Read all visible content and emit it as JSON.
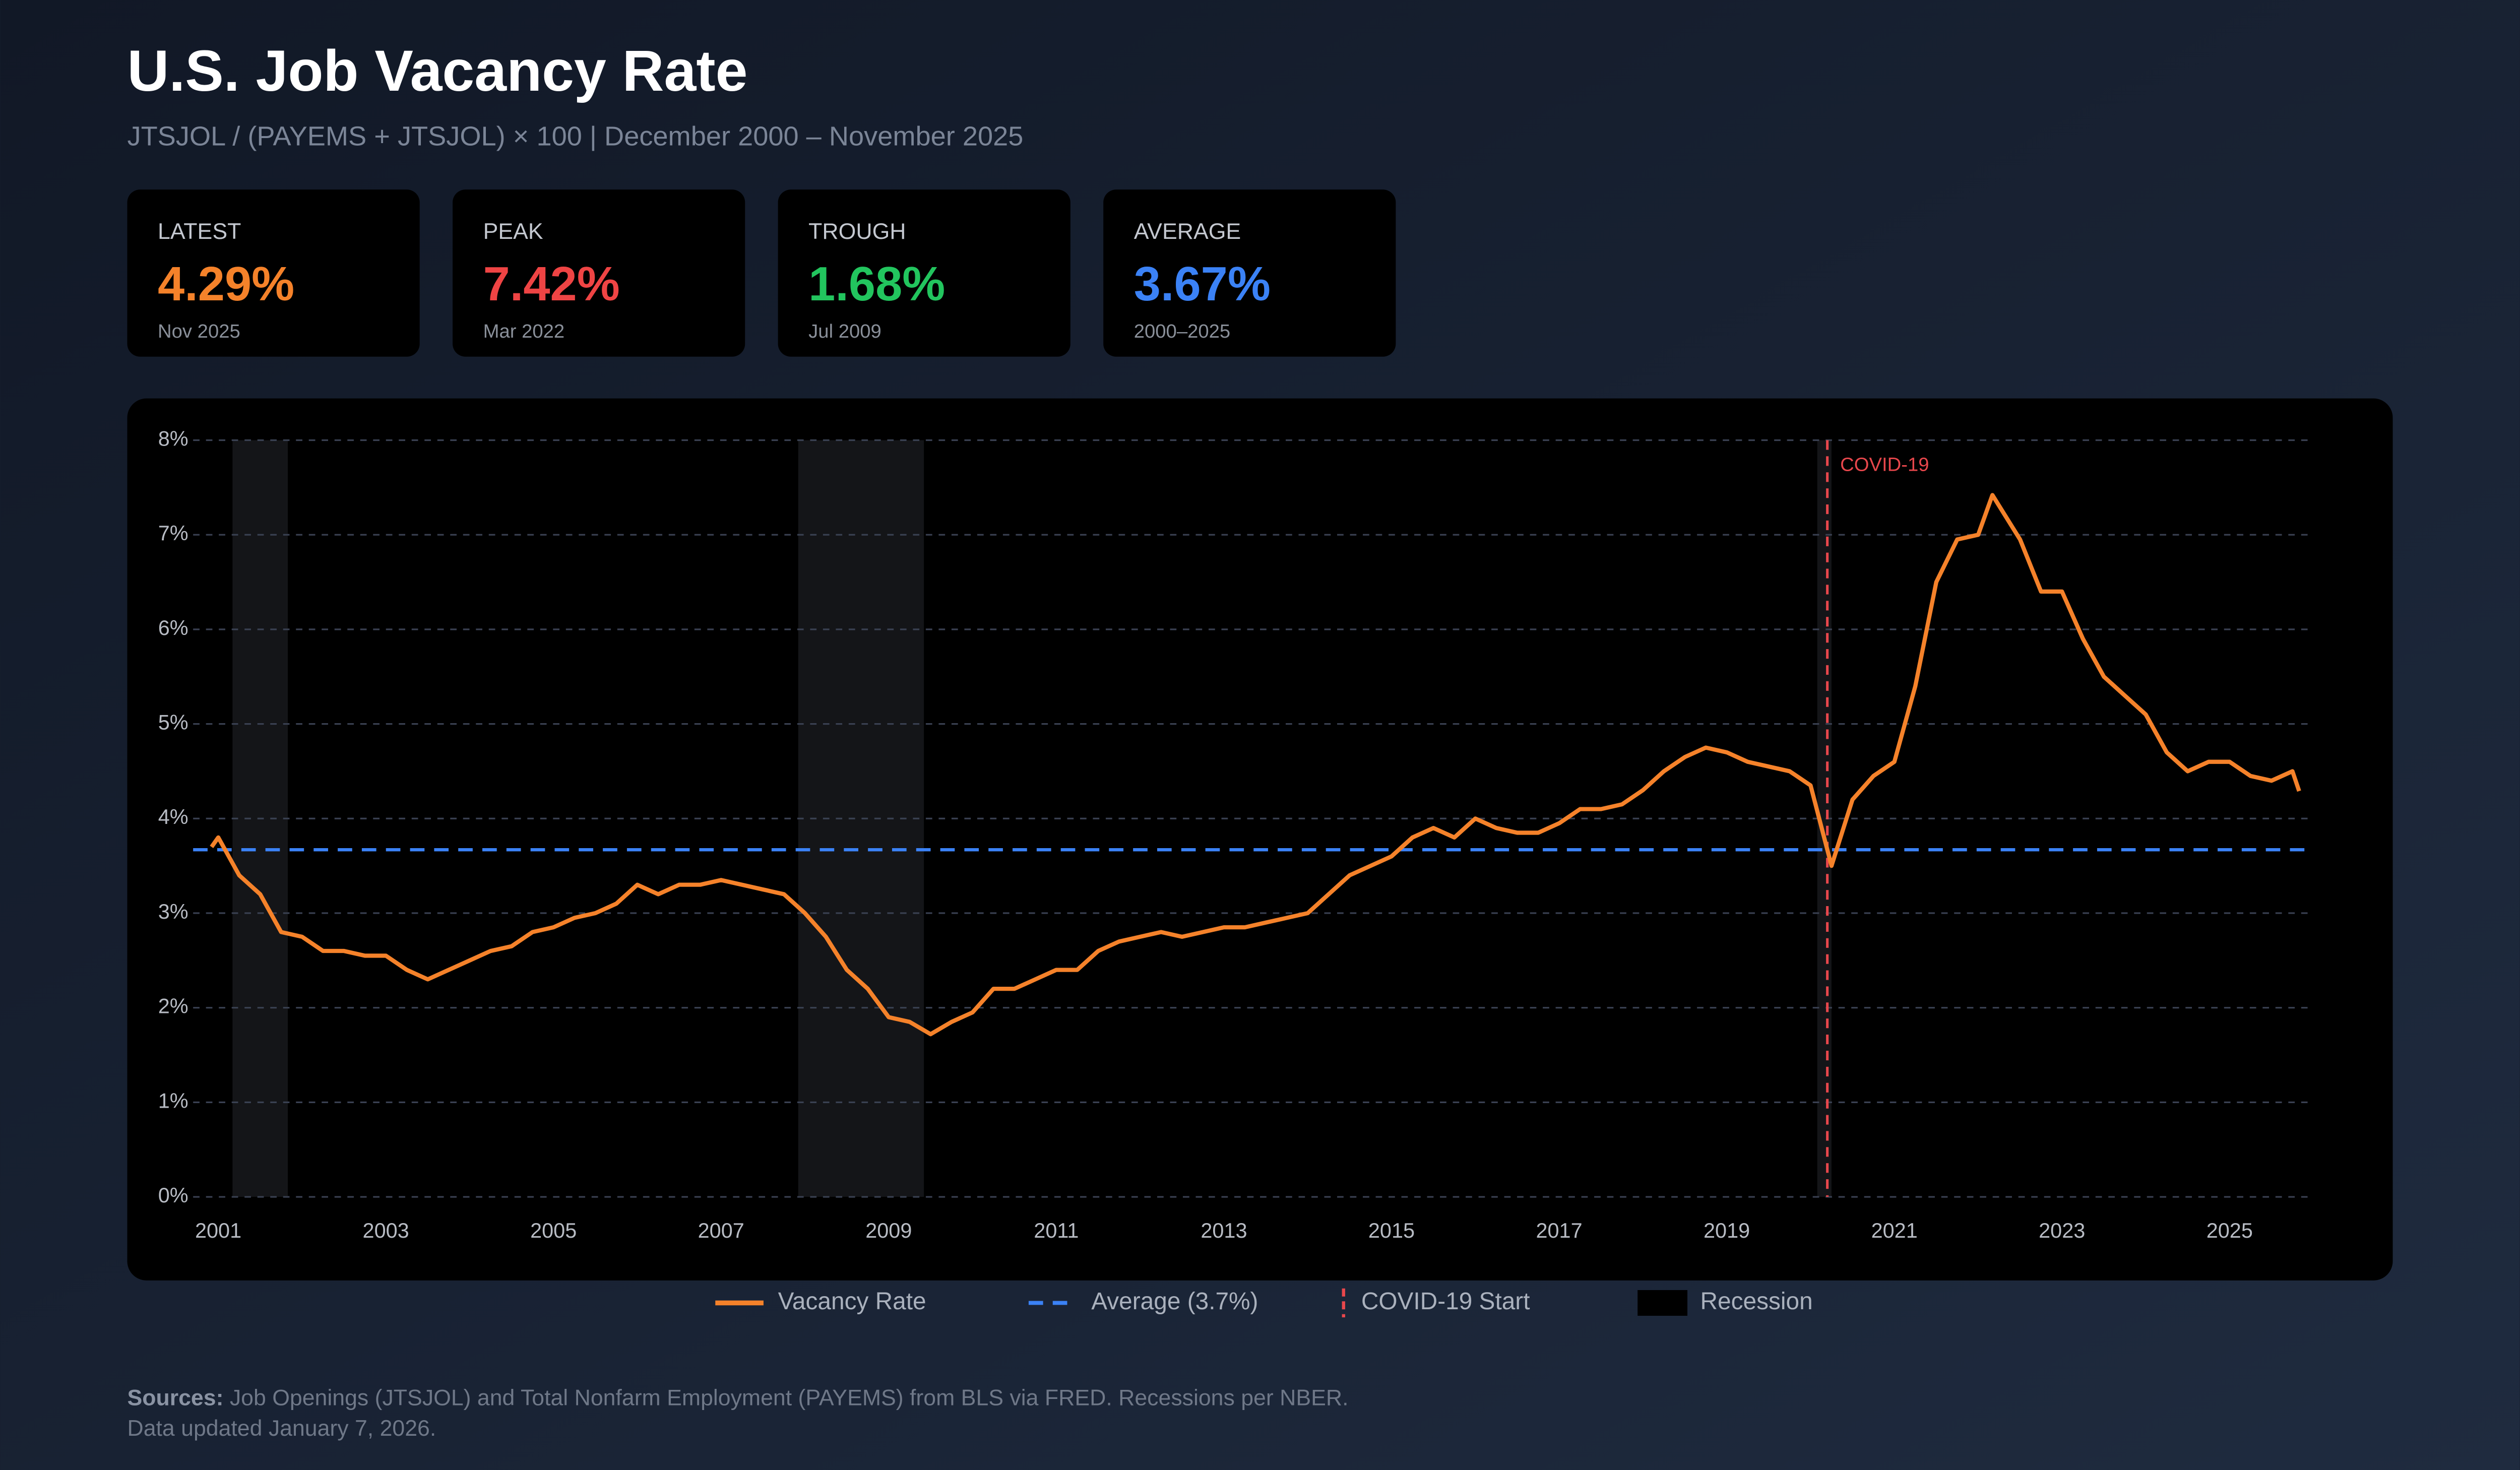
{
  "header": {
    "title": "U.S. Job Vacancy Rate",
    "subtitle": "JTSJOL / (PAYEMS + JTSJOL) × 100 | December 2000 – November 2025"
  },
  "stats": [
    {
      "label": "LATEST",
      "value": "4.29%",
      "note": "Nov 2025",
      "color": "#f5822a"
    },
    {
      "label": "PEAK",
      "value": "7.42%",
      "note": "Mar 2022",
      "color": "#ef4444"
    },
    {
      "label": "TROUGH",
      "value": "1.68%",
      "note": "Jul 2009",
      "color": "#22c55e"
    },
    {
      "label": "AVERAGE",
      "value": "3.67%",
      "note": "2000–2025",
      "color": "#3b82f6"
    }
  ],
  "chart_data": {
    "type": "line",
    "x": [
      2000.92,
      2001.0,
      2001.25,
      2001.5,
      2001.75,
      2002.0,
      2002.25,
      2002.5,
      2002.75,
      2003.0,
      2003.25,
      2003.5,
      2003.75,
      2004.0,
      2004.25,
      2004.5,
      2004.75,
      2005.0,
      2005.25,
      2005.5,
      2005.75,
      2006.0,
      2006.25,
      2006.5,
      2006.75,
      2007.0,
      2007.25,
      2007.5,
      2007.75,
      2008.0,
      2008.25,
      2008.5,
      2008.75,
      2009.0,
      2009.25,
      2009.5,
      2009.75,
      2010.0,
      2010.25,
      2010.5,
      2010.75,
      2011.0,
      2011.25,
      2011.5,
      2011.75,
      2012.0,
      2012.25,
      2012.5,
      2012.75,
      2013.0,
      2013.25,
      2013.5,
      2013.75,
      2014.0,
      2014.25,
      2014.5,
      2014.75,
      2015.0,
      2015.25,
      2015.5,
      2015.75,
      2016.0,
      2016.25,
      2016.5,
      2016.75,
      2017.0,
      2017.25,
      2017.5,
      2017.75,
      2018.0,
      2018.25,
      2018.5,
      2018.75,
      2019.0,
      2019.25,
      2019.5,
      2019.75,
      2020.0,
      2020.25,
      2020.5,
      2020.75,
      2021.0,
      2021.25,
      2021.5,
      2021.75,
      2022.0,
      2022.17,
      2022.5,
      2022.75,
      2023.0,
      2023.25,
      2023.5,
      2023.75,
      2024.0,
      2024.25,
      2024.5,
      2024.75,
      2025.0,
      2025.25,
      2025.5,
      2025.75,
      2025.83
    ],
    "series": [
      {
        "name": "Vacancy Rate",
        "color": "#f5822a",
        "values": [
          3.7,
          3.8,
          3.4,
          3.2,
          2.8,
          2.75,
          2.6,
          2.6,
          2.55,
          2.55,
          2.4,
          2.3,
          2.4,
          2.5,
          2.6,
          2.65,
          2.8,
          2.85,
          2.95,
          3.0,
          3.1,
          3.3,
          3.2,
          3.3,
          3.3,
          3.35,
          3.3,
          3.25,
          3.2,
          3.0,
          2.75,
          2.4,
          2.2,
          1.9,
          1.85,
          1.72,
          1.85,
          1.95,
          2.2,
          2.2,
          2.3,
          2.4,
          2.4,
          2.6,
          2.7,
          2.75,
          2.8,
          2.75,
          2.8,
          2.85,
          2.85,
          2.9,
          2.95,
          3.0,
          3.2,
          3.4,
          3.5,
          3.6,
          3.8,
          3.9,
          3.8,
          4.0,
          3.9,
          3.85,
          3.85,
          3.95,
          4.1,
          4.1,
          4.15,
          4.3,
          4.5,
          4.65,
          4.75,
          4.7,
          4.6,
          4.55,
          4.5,
          4.35,
          3.5,
          4.2,
          4.45,
          4.6,
          5.4,
          6.5,
          6.95,
          7.0,
          7.42,
          6.95,
          6.4,
          6.4,
          5.9,
          5.5,
          5.3,
          5.1,
          4.7,
          4.5,
          4.6,
          4.6,
          4.45,
          4.4,
          4.5,
          4.29
        ]
      }
    ],
    "average": {
      "name": "Average (3.7%)",
      "value": 3.67,
      "color": "#3b82f6"
    },
    "covid": {
      "name": "COVID-19 Start",
      "label": "COVID-19",
      "x": 2020.2,
      "color": "#e8474c"
    },
    "recession": {
      "name": "Recession",
      "ranges": [
        [
          2001.17,
          2001.83
        ],
        [
          2007.92,
          2009.42
        ],
        [
          2020.08,
          2020.25
        ]
      ]
    },
    "xlim": [
      2000.7,
      2025.95
    ],
    "xticks": [
      2001,
      2003,
      2005,
      2007,
      2009,
      2011,
      2013,
      2015,
      2017,
      2019,
      2021,
      2023,
      2025
    ],
    "ylim": [
      0,
      8
    ],
    "yticks": [
      {
        "value": 0,
        "label": "0%"
      },
      {
        "value": 1,
        "label": "1%"
      },
      {
        "value": 2,
        "label": "2%"
      },
      {
        "value": 3,
        "label": "3%"
      },
      {
        "value": 4,
        "label": "4%"
      },
      {
        "value": 5,
        "label": "5%"
      },
      {
        "value": 6,
        "label": "6%"
      },
      {
        "value": 7,
        "label": "7%"
      },
      {
        "value": 8,
        "label": "8%"
      }
    ],
    "grid": true
  },
  "footer": {
    "label": "Sources:",
    "text": "Job Openings (JTSJOL) and Total Nonfarm Employment (PAYEMS) from BLS via FRED. Recessions per NBER.",
    "updated": "Data updated January 7, 2026."
  }
}
